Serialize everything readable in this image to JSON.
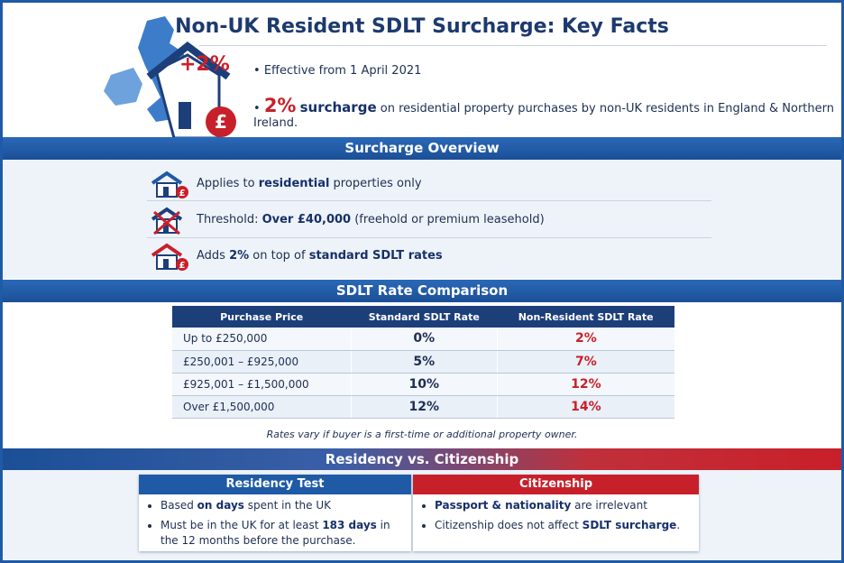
{
  "header": {
    "title": "Non-UK Resident SDLT Surcharge: Key Facts",
    "badge": "+2%",
    "effective": "Effective from 1 April 2021",
    "surcharge_bullet": {
      "rate": "2%",
      "keyword": "surcharge",
      "rest": "on residential property purchases by non-UK residents in England & Northern Ireland."
    }
  },
  "overview": {
    "title": "Surcharge Overview",
    "items": [
      {
        "parts": [
          {
            "text": "Applies to "
          },
          {
            "text": "residential",
            "bold": true
          },
          {
            "text": " properties only"
          }
        ]
      },
      {
        "parts": [
          {
            "text": "Threshold: "
          },
          {
            "text": "Over £40,000",
            "bold": true
          },
          {
            "text": " (freehold or premium leasehold)"
          }
        ]
      },
      {
        "parts": [
          {
            "text": "Adds "
          },
          {
            "text": "2%",
            "bold": true
          },
          {
            "text": " on top of "
          },
          {
            "text": "standard SDLT rates",
            "bold": true
          }
        ]
      }
    ]
  },
  "table": {
    "title": "SDLT Rate Comparison",
    "header": [
      "Purchase Price",
      "Standard SDLT Rate",
      "Non-Resident SDLT Rate"
    ],
    "rows": [
      [
        "Up to £250,000",
        "0%",
        "2%"
      ],
      [
        "£250,001 – £925,000",
        "5%",
        "7%"
      ],
      [
        "£925,001 – £1,500,000",
        "10%",
        "12%"
      ],
      [
        "Over £1,500,000",
        "12%",
        "14%"
      ]
    ],
    "note": "Rates vary if buyer is a first-time or additional property owner."
  },
  "residency": {
    "title": "Residency vs. Citizenship",
    "left": {
      "title": "Residency Test",
      "bullets": [
        {
          "parts": [
            {
              "text": "Based "
            },
            {
              "text": "on days",
              "bold": true
            },
            {
              "text": " spent in the UK"
            }
          ]
        },
        {
          "parts": [
            {
              "text": "Must be in the UK for at least "
            },
            {
              "text": "183 days",
              "bold": true
            },
            {
              "text": " in the 12 months before the purchase."
            }
          ]
        }
      ]
    },
    "right": {
      "title": "Citizenship",
      "bullets": [
        {
          "parts": [
            {
              "text": "Passport & nationality",
              "bold": true
            },
            {
              "text": " are irrelevant"
            }
          ]
        },
        {
          "parts": [
            {
              "text": "Citizenship does not affect "
            },
            {
              "text": "SDLT surcharge",
              "bold": true
            },
            {
              "text": "."
            }
          ]
        }
      ]
    }
  }
}
